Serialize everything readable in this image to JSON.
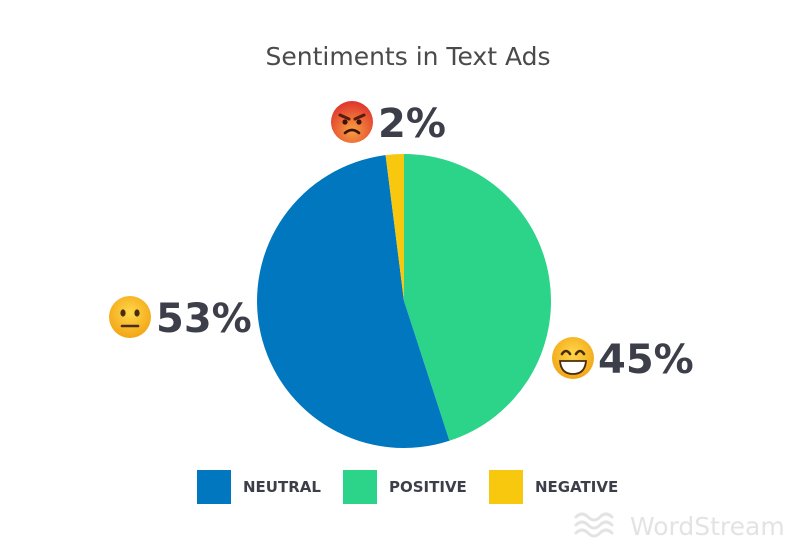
{
  "chart_data": {
    "type": "pie",
    "title": "Sentiments in Text Ads",
    "slices": [
      {
        "label": "NEUTRAL",
        "value": 53,
        "display": "53%",
        "color": "#0077BE",
        "icon": "neutral-face-emoji"
      },
      {
        "label": "POSITIVE",
        "value": 45,
        "display": "45%",
        "color": "#2CD48A",
        "icon": "grinning-face-emoji"
      },
      {
        "label": "NEGATIVE",
        "value": 2,
        "display": "2%",
        "color": "#F8C80F",
        "icon": "angry-face-emoji"
      }
    ],
    "legend_position": "bottom"
  },
  "branding": {
    "text": "WordStream",
    "icon": "waves-logo-icon"
  }
}
